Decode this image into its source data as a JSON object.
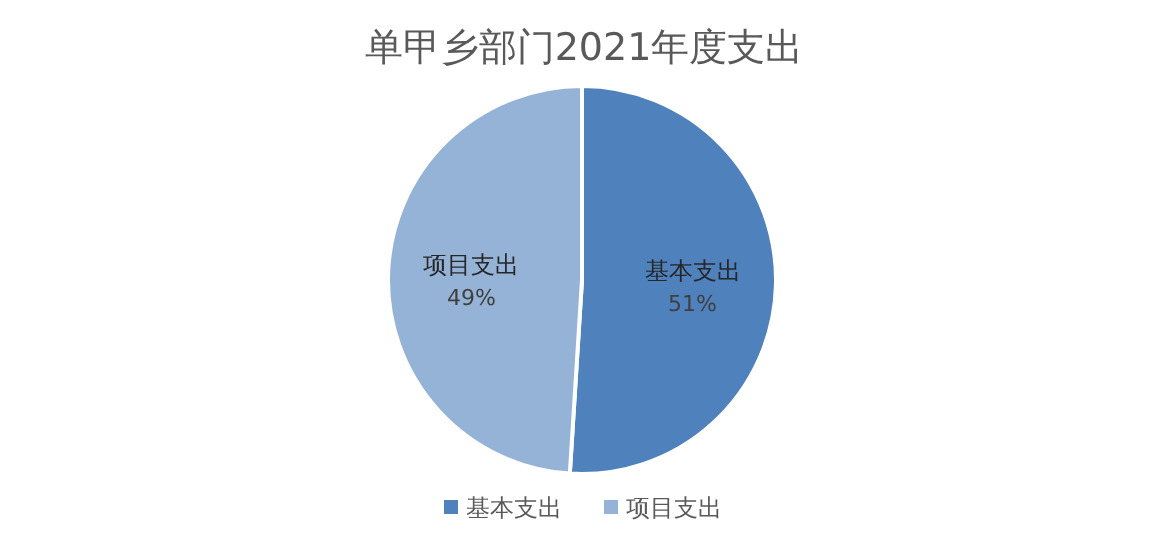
{
  "chart_data": {
    "type": "pie",
    "title": "单甲乡部门2021年度支出",
    "categories": [
      "基本支出",
      "项目支出"
    ],
    "values": [
      51,
      49
    ],
    "value_labels": [
      "51%",
      "49%"
    ],
    "colors": [
      "#4f81bd",
      "#95b3d7"
    ],
    "legend": "bottom"
  }
}
